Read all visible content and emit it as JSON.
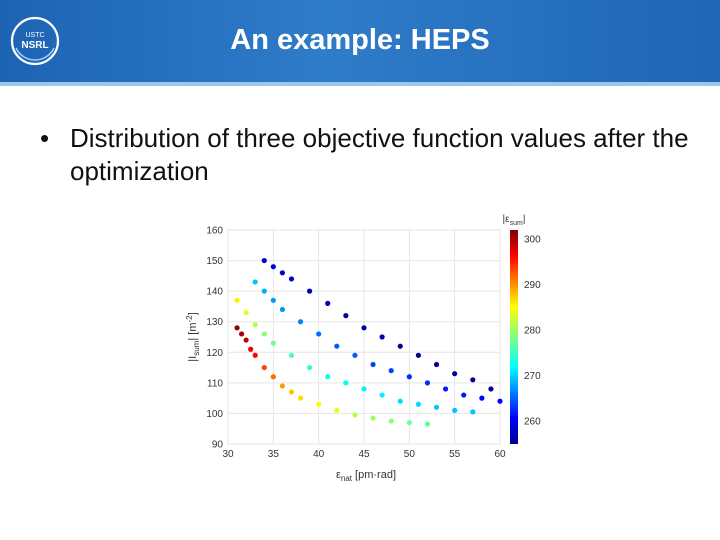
{
  "header": {
    "title": "An example: HEPS",
    "logo_text": [
      "USTC",
      "NSRL"
    ]
  },
  "content": {
    "bullet": "•",
    "bullet_text": "Distribution of three objective function values after the optimization"
  },
  "chart_data": {
    "type": "scatter",
    "xlabel_main": "ε",
    "xlabel_sub": "nat",
    "xlabel_unit": " [pm·rad]",
    "ylabel_main": "|I",
    "ylabel_sub": "sum",
    "ylabel_unit": "| [m",
    "ylabel_sup": "-2",
    "ylabel_close": "]",
    "xlim": [
      30,
      60
    ],
    "ylim": [
      90,
      160
    ],
    "x_ticks": [
      30,
      35,
      40,
      45,
      50,
      55,
      60
    ],
    "y_ticks": [
      90,
      100,
      110,
      120,
      130,
      140,
      150,
      160
    ],
    "colorbar": {
      "label_main": "|ε",
      "label_sub": "sum",
      "label_close": "|",
      "range": [
        255,
        302
      ],
      "ticks": [
        260,
        270,
        280,
        290,
        300
      ],
      "colormap": "jet"
    },
    "grid": true,
    "series": [
      {
        "description": "Pareto-front points: color = |ε_sum|",
        "points": [
          [
            31.0,
            128,
            301
          ],
          [
            31.5,
            126,
            300
          ],
          [
            32.0,
            124,
            299
          ],
          [
            32.5,
            121,
            297
          ],
          [
            33.0,
            119,
            296
          ],
          [
            34.0,
            115,
            293
          ],
          [
            35.0,
            112,
            291
          ],
          [
            36.0,
            109,
            289
          ],
          [
            37.0,
            107,
            287
          ],
          [
            38.0,
            105,
            286
          ],
          [
            40.0,
            103,
            284
          ],
          [
            42.0,
            101,
            283
          ],
          [
            44.0,
            99.5,
            281
          ],
          [
            46.0,
            98.5,
            280
          ],
          [
            48.0,
            97.5,
            279
          ],
          [
            50.0,
            97,
            278
          ],
          [
            52.0,
            96.5,
            277
          ],
          [
            31.0,
            137,
            285
          ],
          [
            32.0,
            133,
            283
          ],
          [
            33.0,
            129,
            281
          ],
          [
            34.0,
            126,
            279
          ],
          [
            35.0,
            123,
            278
          ],
          [
            37.0,
            119,
            276
          ],
          [
            39.0,
            115,
            275
          ],
          [
            41.0,
            112,
            274
          ],
          [
            43.0,
            110,
            273
          ],
          [
            45.0,
            108,
            272
          ],
          [
            47.0,
            106,
            272
          ],
          [
            49.0,
            104,
            271
          ],
          [
            51.0,
            103,
            271
          ],
          [
            53.0,
            102,
            270
          ],
          [
            55.0,
            101,
            270
          ],
          [
            57.0,
            100.5,
            270
          ],
          [
            33.0,
            143,
            270
          ],
          [
            34.0,
            140,
            269
          ],
          [
            35.0,
            137,
            268
          ],
          [
            36.0,
            134,
            268
          ],
          [
            38.0,
            130,
            267
          ],
          [
            40.0,
            126,
            266
          ],
          [
            42.0,
            122,
            265
          ],
          [
            44.0,
            119,
            265
          ],
          [
            46.0,
            116,
            264
          ],
          [
            48.0,
            114,
            264
          ],
          [
            50.0,
            112,
            263
          ],
          [
            52.0,
            110,
            263
          ],
          [
            54.0,
            108,
            262
          ],
          [
            56.0,
            106,
            262
          ],
          [
            58.0,
            105,
            261
          ],
          [
            60.0,
            104,
            261
          ],
          [
            34.0,
            150,
            259
          ],
          [
            35.0,
            148,
            259
          ],
          [
            36.0,
            146,
            258
          ],
          [
            37.0,
            144,
            258
          ],
          [
            39.0,
            140,
            258
          ],
          [
            41.0,
            136,
            257
          ],
          [
            43.0,
            132,
            257
          ],
          [
            45.0,
            128,
            257
          ],
          [
            47.0,
            125,
            257
          ],
          [
            49.0,
            122,
            256
          ],
          [
            51.0,
            119,
            256
          ],
          [
            53.0,
            116,
            256
          ],
          [
            55.0,
            113,
            256
          ],
          [
            57.0,
            111,
            256
          ],
          [
            59.0,
            108,
            256
          ]
        ]
      }
    ]
  }
}
